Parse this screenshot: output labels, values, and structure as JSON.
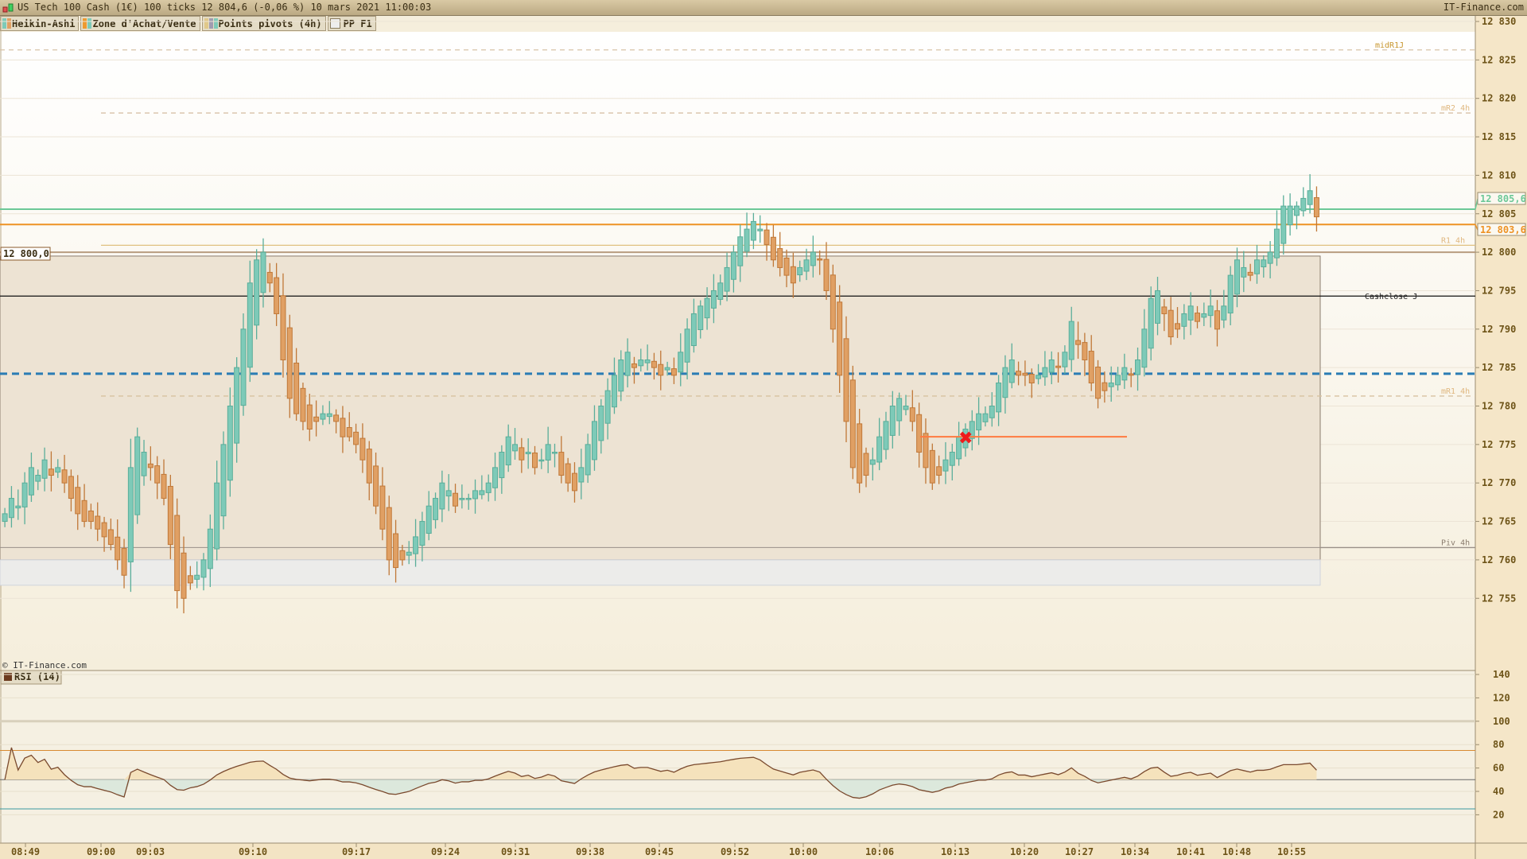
{
  "header": {
    "title": "US Tech 100 Cash (1€) 100 ticks 12 804,6 (-0,06 %) 10 mars 2021 11:00:03",
    "brand": "IT-Finance.com"
  },
  "legend": [
    {
      "label": "Heikin-Ashi",
      "colors": [
        "#7ecab8",
        "#e0a064"
      ]
    },
    {
      "label": "Zone d'Achat/Vente",
      "colors": [
        "#ee9a30",
        "#7ecab8"
      ]
    },
    {
      "label": "Points pivots (4h)",
      "colors": [
        "#e0c88a",
        "#a09cb0",
        "#7ecab8"
      ]
    },
    {
      "label": "PP F1",
      "colors": []
    }
  ],
  "watermark": "© IT-Finance.com",
  "rsi_legend": {
    "label": "RSI (14)",
    "color": "#6b3a1e"
  },
  "left_price_label": "12 800,0",
  "colors": {
    "up": "#7ecab8",
    "up_border": "#5aae9a",
    "down": "#e0a064",
    "down_border": "#c07838",
    "zone": "#ede3d3",
    "axis_bg": "#f5e6c8"
  },
  "chart_data": {
    "type": "candlestick",
    "style": "Heikin-Ashi",
    "ylim": [
      12751,
      12831
    ],
    "yticks": [
      12830,
      12825,
      12820,
      12815,
      12810,
      12805,
      12800,
      12795,
      12790,
      12785,
      12780,
      12775,
      12770,
      12765,
      12760,
      12755
    ],
    "ytick_labels": [
      "12 830",
      "12 825",
      "12 820",
      "12 815",
      "12 810",
      "12 805",
      "12 800",
      "12 795",
      "12 790",
      "12 785",
      "12 780",
      "12 775",
      "12 770",
      "12 765",
      "12 760",
      "12 755"
    ],
    "xtick_labels": [
      "08:49",
      "09:00",
      "09:03",
      "09:10",
      "09:17",
      "09:24",
      "09:31",
      "09:38",
      "09:45",
      "09:52",
      "10:00",
      "10:06",
      "10:13",
      "10:20",
      "10:27",
      "10:34",
      "10:41",
      "10:48",
      "10:55"
    ],
    "closes": [
      12766,
      12768,
      12767,
      12770,
      12772,
      12771,
      12773,
      12771,
      12772,
      12770,
      12768,
      12766,
      12765,
      12765,
      12764,
      12763,
      12762,
      12760,
      12758,
      12772,
      12776,
      12774,
      12772,
      12770,
      12768,
      12762,
      12756,
      12755,
      12757,
      12758,
      12760,
      12764,
      12770,
      12775,
      12780,
      12785,
      12790,
      12796,
      12799,
      12800,
      12796,
      12792,
      12786,
      12781,
      12779,
      12778,
      12777,
      12778,
      12779,
      12779,
      12778,
      12776,
      12776,
      12775,
      12773,
      12770,
      12767,
      12764,
      12760,
      12759,
      12760,
      12761,
      12763,
      12765,
      12767,
      12768,
      12770,
      12769,
      12767,
      12768,
      12768,
      12769,
      12769,
      12770,
      12772,
      12774,
      12776,
      12775,
      12773,
      12774,
      12772,
      12773,
      12775,
      12774,
      12771,
      12770,
      12769,
      12772,
      12775,
      12778,
      12780,
      12782,
      12784,
      12786,
      12787,
      12785,
      12786,
      12786,
      12785,
      12784,
      12785,
      12784,
      12787,
      12790,
      12792,
      12793,
      12794,
      12795,
      12796,
      12798,
      12800,
      12802,
      12803,
      12804,
      12803,
      12801,
      12799,
      12798,
      12797,
      12796,
      12798,
      12799,
      12800,
      12799,
      12795,
      12790,
      12784,
      12778,
      12772,
      12770,
      12771,
      12773,
      12776,
      12778,
      12780,
      12781,
      12780,
      12778,
      12774,
      12772,
      12770,
      12771,
      12773,
      12774,
      12776,
      12777,
      12778,
      12779,
      12779,
      12780,
      12783,
      12785,
      12786,
      12784,
      12784,
      12783,
      12784,
      12785,
      12786,
      12785,
      12787,
      12791,
      12788,
      12786,
      12783,
      12781,
      12782,
      12783,
      12784,
      12785,
      12784,
      12786,
      12790,
      12794,
      12795,
      12792,
      12789,
      12790,
      12792,
      12793,
      12791,
      12792,
      12793,
      12790,
      12793,
      12797,
      12799,
      12798,
      12797,
      12799,
      12799,
      12800,
      12803,
      12806,
      12806,
      12806,
      12807,
      12808,
      12804.6
    ],
    "zone": {
      "top": 12799.5,
      "bottom": 12760,
      "grey_bottom": 12756.7
    },
    "levels": [
      {
        "name": "midR1J",
        "value": 12826.3,
        "color": "#d8c2a8",
        "style": "dashed",
        "label_color": "#c8962e"
      },
      {
        "name": "mR2 4h",
        "value": 12818.1,
        "color": "#d8c2a8",
        "style": "dashed",
        "label_color": "#e0b880"
      },
      {
        "name": "",
        "value": 12805.6,
        "color": "#6cc898",
        "style": "solid",
        "price_label": "12 805,6"
      },
      {
        "name": "",
        "value": 12803.6,
        "color": "#ee9224",
        "style": "solid",
        "price_label": "12 803,6"
      },
      {
        "name": "R1 4h",
        "value": 12800.9,
        "color": "#e0c080",
        "style": "solid",
        "label_color": "#e0b880"
      },
      {
        "name": "",
        "value": 12800.0,
        "color": "#b89c80",
        "style": "solid"
      },
      {
        "name": "Cashclose J",
        "value": 12794.3,
        "color": "#111111",
        "style": "solid",
        "label_color": "#222222"
      },
      {
        "name": "",
        "value": 12784.2,
        "color": "#2a7cb4",
        "style": "bold-dashed"
      },
      {
        "name": "mR1 4h",
        "value": 12781.3,
        "color": "#d8c2a0",
        "style": "dashed",
        "label_color": "#e0b880"
      },
      {
        "name": "Piv 4h",
        "value": 12761.6,
        "color": "#9a9088",
        "style": "solid",
        "label_color": "#8a7c6e"
      }
    ],
    "signal": {
      "value": 12776,
      "color": "#ff7a40",
      "marker": "red-x"
    },
    "rsi": {
      "period": 14,
      "ylim": [
        10,
        145
      ],
      "yticks": [
        140,
        120,
        100,
        80,
        60,
        40,
        20
      ],
      "levels": {
        "high": 75,
        "mid": 50,
        "low": 25
      }
    }
  }
}
